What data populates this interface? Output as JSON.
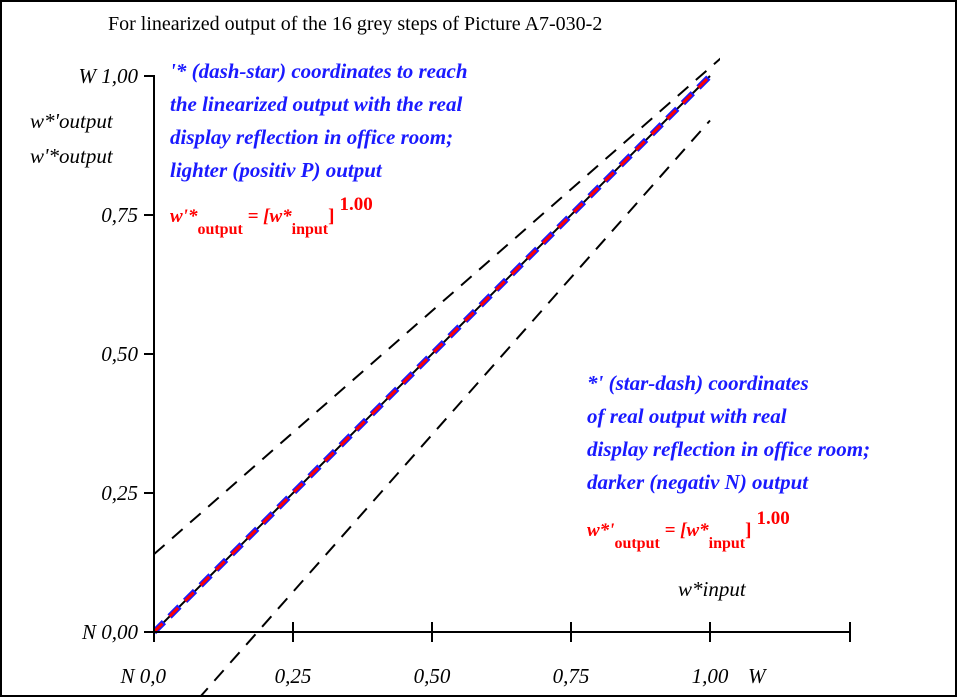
{
  "title": "For linearized output of the 16 grey steps of Picture A7-030-2",
  "y_axis_labels": {
    "top": "W 1,00",
    "line2": "w*'output",
    "line3": "w'*output"
  },
  "x_axis_label": "w*input",
  "x_suffix": "W",
  "notes": {
    "upper": [
      "'* (dash-star) coordinates to reach",
      "the linearized output with the real",
      "display reflection in office room;",
      "lighter (positiv P) output"
    ],
    "lower": [
      "*' (star-dash) coordinates",
      "of real output with real",
      "display reflection in office room;",
      "darker (negativ N) output"
    ]
  },
  "formula_upper": {
    "lhs": "w'*",
    "lhs_sub": "output",
    "mid": " = [w*",
    "mid_sub": "input",
    "close": "]",
    "exp": "1.00"
  },
  "formula_lower": {
    "lhs": "w*'",
    "lhs_sub": "output",
    "mid": " = [w*",
    "mid_sub": "input",
    "close": "]",
    "exp": "1.00"
  },
  "colors": {
    "blue": "#1a1aff",
    "red": "#ff0000",
    "black": "#000000"
  },
  "chart_data": {
    "type": "line",
    "xlim": [
      0,
      1
    ],
    "ylim": [
      0,
      1
    ],
    "x_ticks": [
      0,
      0.25,
      0.5,
      0.75,
      1.0
    ],
    "y_ticks": [
      0,
      0.25,
      0.5,
      0.75,
      1.0
    ],
    "x_tick_labels": [
      "N  0,0",
      "0,25",
      "0,50",
      "0,75",
      "1,00"
    ],
    "y_tick_labels": [
      "N 0,00",
      "0,25",
      "0,50",
      "0,75",
      "W 1,00"
    ],
    "series": [
      {
        "style": "solid black",
        "x": [
          0,
          1
        ],
        "y": [
          0,
          1
        ]
      },
      {
        "style": "dashed blue",
        "x": [
          0,
          1
        ],
        "y": [
          0,
          1
        ]
      },
      {
        "style": "dashed red",
        "x": [
          0,
          1
        ],
        "y": [
          0,
          1
        ]
      },
      {
        "style": "dashed black",
        "x": [
          0,
          1.12
        ],
        "y": [
          0.14,
          1.12
        ]
      },
      {
        "style": "dashed black",
        "x": [
          0.08,
          1.0
        ],
        "y": [
          -0.12,
          0.92
        ]
      }
    ],
    "grid": false
  }
}
